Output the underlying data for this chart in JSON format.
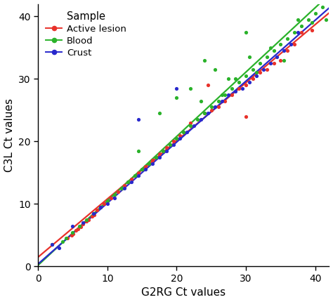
{
  "xlabel": "G2RG Ct values",
  "ylabel": "C3L Ct values",
  "xlim": [
    0,
    42
  ],
  "ylim": [
    0,
    42
  ],
  "xticks": [
    0,
    10,
    20,
    30,
    40
  ],
  "yticks": [
    0,
    10,
    20,
    30,
    40
  ],
  "legend_title": "Sample",
  "colors": {
    "active_lesion": "#e8312a",
    "blood": "#2ab22a",
    "crust": "#2828cc"
  },
  "active_lesion_line": {
    "slope": 0.93,
    "intercept": 1.5
  },
  "blood_line": {
    "slope": 1.03,
    "intercept": 0.2
  },
  "crust_line": {
    "slope": 0.975,
    "intercept": 0.4
  },
  "active_lesion_x": [
    4.2,
    4.8,
    5.1,
    5.5,
    5.8,
    6.2,
    6.5,
    7.0,
    7.3,
    7.8,
    8.1,
    8.5,
    9.0,
    9.5,
    10.0,
    10.5,
    11.0,
    11.5,
    12.0,
    12.5,
    13.0,
    13.5,
    14.0,
    14.5,
    15.0,
    15.5,
    16.0,
    16.5,
    17.0,
    17.5,
    18.0,
    18.5,
    19.0,
    19.5,
    20.0,
    20.5,
    21.0,
    22.0,
    24.0,
    25.0,
    26.0,
    27.0,
    28.0,
    29.0,
    30.0,
    31.0,
    32.0,
    33.0,
    34.0,
    35.0,
    36.0,
    37.0,
    38.0,
    39.5,
    30.0,
    24.5
  ],
  "active_lesion_y": [
    4.5,
    5.0,
    5.2,
    5.8,
    6.0,
    6.3,
    6.8,
    7.2,
    7.5,
    8.0,
    8.3,
    9.0,
    9.5,
    10.0,
    10.5,
    11.0,
    11.5,
    12.0,
    12.5,
    13.0,
    13.5,
    14.0,
    14.5,
    15.0,
    15.5,
    16.0,
    16.5,
    17.0,
    17.5,
    18.0,
    18.5,
    19.0,
    19.5,
    20.0,
    20.5,
    21.0,
    21.5,
    23.0,
    24.5,
    25.0,
    25.5,
    26.5,
    27.5,
    28.5,
    29.0,
    30.0,
    31.0,
    31.5,
    32.5,
    33.0,
    34.5,
    35.5,
    37.5,
    37.8,
    24.0,
    29.0
  ],
  "blood_x": [
    2.0,
    3.5,
    4.0,
    5.0,
    6.0,
    7.0,
    8.0,
    9.0,
    10.0,
    11.0,
    12.0,
    13.0,
    14.0,
    15.0,
    16.0,
    17.0,
    18.0,
    19.0,
    20.0,
    21.0,
    22.0,
    23.0,
    24.0,
    25.0,
    26.0,
    27.0,
    28.0,
    29.0,
    30.0,
    31.0,
    32.0,
    33.0,
    34.0,
    35.0,
    36.0,
    37.0,
    38.0,
    39.0,
    40.0,
    41.0,
    14.5,
    17.5,
    20.0,
    22.0,
    23.5,
    25.5,
    26.5,
    28.5,
    30.5,
    31.5,
    33.5,
    35.5,
    37.5,
    39.5,
    41.5,
    24.0,
    27.5,
    30.0
  ],
  "blood_y": [
    3.5,
    4.0,
    4.5,
    5.5,
    6.5,
    7.5,
    8.5,
    9.5,
    10.5,
    11.5,
    12.5,
    13.5,
    14.5,
    15.5,
    16.5,
    17.5,
    18.5,
    19.5,
    20.5,
    21.5,
    22.5,
    23.5,
    24.5,
    25.5,
    26.5,
    27.5,
    28.5,
    29.5,
    30.5,
    31.5,
    32.5,
    33.5,
    34.5,
    35.5,
    36.5,
    37.5,
    38.5,
    39.5,
    40.5,
    41.5,
    18.5,
    24.5,
    27.0,
    28.5,
    26.5,
    31.5,
    27.5,
    30.0,
    33.5,
    31.0,
    35.0,
    33.0,
    39.5,
    39.0,
    39.5,
    33.0,
    30.0,
    37.5
  ],
  "crust_x": [
    2.0,
    3.0,
    5.0,
    6.5,
    8.0,
    9.0,
    10.0,
    11.0,
    12.5,
    13.5,
    14.5,
    15.5,
    16.5,
    17.5,
    18.5,
    19.5,
    20.5,
    21.5,
    22.5,
    23.5,
    24.5,
    25.5,
    26.5,
    27.5,
    28.5,
    29.5,
    30.5,
    31.5,
    32.5,
    33.5,
    34.5,
    35.5,
    36.5,
    37.5,
    14.5,
    20.0
  ],
  "crust_y": [
    3.5,
    3.0,
    6.5,
    7.0,
    8.5,
    9.5,
    10.0,
    11.0,
    12.5,
    13.5,
    14.5,
    15.5,
    16.5,
    17.5,
    18.5,
    19.5,
    20.5,
    21.5,
    22.5,
    23.5,
    24.5,
    25.5,
    26.5,
    27.5,
    28.0,
    28.5,
    29.5,
    30.5,
    31.5,
    32.5,
    33.5,
    34.5,
    35.5,
    37.5,
    23.5,
    28.5
  ],
  "figsize": [
    4.74,
    4.3
  ],
  "dpi": 100
}
